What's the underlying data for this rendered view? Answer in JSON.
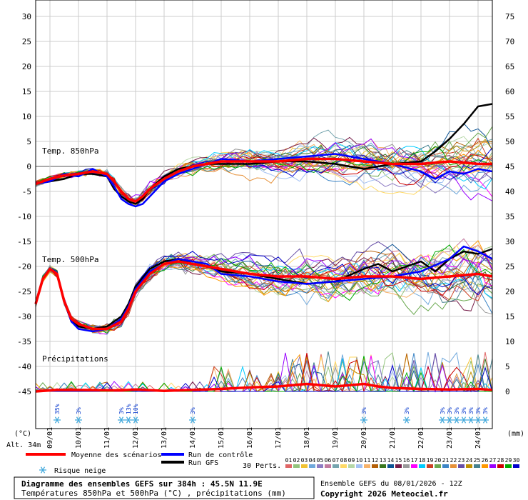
{
  "chart_data": {
    "type": "line",
    "title": "Diagramme des ensembles GEFS sur 384h : 45.5N 11.9E",
    "subtitle": "Températures 850hPa et 500hPa (°C) , précipitations (mm)",
    "run_info": "Ensemble GEFS du 08/01/2026 - 12Z",
    "copyright": "Copyright 2026 Meteociel.fr",
    "altitude": "Alt. 34m",
    "left_unit": "(°C)",
    "right_unit": "(mm)",
    "y_left": {
      "ticks": [
        30,
        25,
        20,
        15,
        10,
        5,
        0,
        -5,
        -10,
        -15,
        -20,
        -25,
        -30,
        -35,
        -40,
        -45
      ],
      "range": [
        -45,
        30
      ]
    },
    "y_right": {
      "ticks": [
        75,
        70,
        65,
        60,
        55,
        50,
        45,
        40,
        35,
        30,
        25,
        20,
        15,
        10,
        5,
        0
      ]
    },
    "x_axis": {
      "start_day": 8.5,
      "end_day": 24.5,
      "labels": [
        "09/01",
        "10/01",
        "11/01",
        "12/01",
        "13/01",
        "14/01",
        "15/01",
        "16/01",
        "17/01",
        "18/01",
        "19/01",
        "20/01",
        "21/01",
        "22/01",
        "23/01",
        "24/01"
      ]
    },
    "panel_labels": {
      "t850": "Temp. 850hPa",
      "t500": "Temp. 500hPa",
      "precip": "Précipitations"
    },
    "legend": {
      "mean": "Moyenne des scénarios",
      "control": "Run de contrôle",
      "gfs": "Run GFS",
      "snow": "Risque neige",
      "perts_label": "30 Perts.",
      "perts": [
        "01",
        "02",
        "03",
        "04",
        "05",
        "06",
        "07",
        "08",
        "09",
        "10",
        "11",
        "12",
        "13",
        "14",
        "15",
        "16",
        "17",
        "18",
        "19",
        "20",
        "21",
        "22",
        "23",
        "24",
        "25",
        "26",
        "27",
        "28",
        "29",
        "30"
      ],
      "pert_colors": [
        "#e06666",
        "#93c47d",
        "#f1c232",
        "#6fa8dc",
        "#8e7cc3",
        "#c27ba0",
        "#76a5af",
        "#ffd966",
        "#b6d7a8",
        "#a4c2f4",
        "#f6b26b",
        "#b45f06",
        "#38761d",
        "#0b5394",
        "#741b47",
        "#999999",
        "#ff00ff",
        "#00ccff",
        "#cc4125",
        "#6aa84f",
        "#3d85c6",
        "#e69138",
        "#674ea7",
        "#bf9000",
        "#45818e",
        "#ff9900",
        "#9900ff",
        "#cc0000",
        "#00aa00",
        "#0000cc"
      ]
    },
    "snow_risk": [
      {
        "day": 9.25,
        "pct": "35%"
      },
      {
        "day": 10.0,
        "pct": "3%"
      },
      {
        "day": 11.5,
        "pct": "3%"
      },
      {
        "day": 11.75,
        "pct": "13%"
      },
      {
        "day": 12.0,
        "pct": "10%"
      },
      {
        "day": 14.0,
        "pct": "3%"
      },
      {
        "day": 20.0,
        "pct": "3%"
      },
      {
        "day": 21.5,
        "pct": "3%"
      },
      {
        "day": 22.75,
        "pct": "3%"
      },
      {
        "day": 23.0,
        "pct": "3%"
      },
      {
        "day": 23.25,
        "pct": "3%"
      },
      {
        "day": 23.5,
        "pct": "3%"
      },
      {
        "day": 23.75,
        "pct": "3%"
      },
      {
        "day": 24.0,
        "pct": "3%"
      },
      {
        "day": 24.25,
        "pct": "3%"
      }
    ],
    "t850_mean": [
      [
        8.5,
        -3.5
      ],
      [
        9.0,
        -2.5
      ],
      [
        9.5,
        -1.8
      ],
      [
        10.0,
        -1.5
      ],
      [
        10.5,
        -1.0
      ],
      [
        11.0,
        -1.5
      ],
      [
        11.25,
        -3.0
      ],
      [
        11.5,
        -5.0
      ],
      [
        11.75,
        -6.5
      ],
      [
        12.0,
        -7.0
      ],
      [
        12.25,
        -6.0
      ],
      [
        12.5,
        -4.5
      ],
      [
        13.0,
        -2.5
      ],
      [
        13.5,
        -1.0
      ],
      [
        14.0,
        0.0
      ],
      [
        14.5,
        0.5
      ],
      [
        15.0,
        1.0
      ],
      [
        16.0,
        1.0
      ],
      [
        17.0,
        1.0
      ],
      [
        18.0,
        1.5
      ],
      [
        19.0,
        1.5
      ],
      [
        20.0,
        1.0
      ],
      [
        21.0,
        0.5
      ],
      [
        22.0,
        0.5
      ],
      [
        23.0,
        1.0
      ],
      [
        24.0,
        0.5
      ],
      [
        24.5,
        0.5
      ]
    ],
    "t850_control": [
      [
        8.5,
        -3.5
      ],
      [
        9.0,
        -3.0
      ],
      [
        9.5,
        -1.5
      ],
      [
        10.0,
        -2.0
      ],
      [
        10.5,
        -0.5
      ],
      [
        11.0,
        -2.0
      ],
      [
        11.25,
        -4.0
      ],
      [
        11.5,
        -6.5
      ],
      [
        11.75,
        -7.5
      ],
      [
        12.0,
        -8.0
      ],
      [
        12.25,
        -7.5
      ],
      [
        12.5,
        -6.0
      ],
      [
        13.0,
        -3.0
      ],
      [
        13.5,
        -1.5
      ],
      [
        14.0,
        -0.5
      ],
      [
        14.5,
        0.5
      ],
      [
        15.0,
        1.5
      ],
      [
        16.0,
        1.0
      ],
      [
        17.0,
        1.5
      ],
      [
        18.0,
        2.0
      ],
      [
        19.0,
        2.5
      ],
      [
        20.0,
        1.5
      ],
      [
        21.0,
        0.5
      ],
      [
        22.0,
        -1.0
      ],
      [
        22.5,
        -2.5
      ],
      [
        23.0,
        -1.0
      ],
      [
        23.5,
        -1.5
      ],
      [
        24.0,
        -0.5
      ],
      [
        24.5,
        -1.0
      ]
    ],
    "t850_gfs": [
      [
        8.5,
        -3.5
      ],
      [
        9.0,
        -3.0
      ],
      [
        9.5,
        -2.5
      ],
      [
        10.0,
        -1.5
      ],
      [
        10.5,
        -1.5
      ],
      [
        11.0,
        -2.0
      ],
      [
        11.25,
        -4.5
      ],
      [
        11.5,
        -6.0
      ],
      [
        11.75,
        -7.0
      ],
      [
        12.0,
        -7.5
      ],
      [
        12.25,
        -6.5
      ],
      [
        12.5,
        -4.5
      ],
      [
        13.0,
        -2.0
      ],
      [
        13.5,
        -0.5
      ],
      [
        14.0,
        0.0
      ],
      [
        14.5,
        0.5
      ],
      [
        15.0,
        0.5
      ],
      [
        16.0,
        0.5
      ],
      [
        17.0,
        1.0
      ],
      [
        18.0,
        1.0
      ],
      [
        19.0,
        0.5
      ],
      [
        20.0,
        -0.5
      ],
      [
        21.0,
        0.5
      ],
      [
        22.0,
        1.0
      ],
      [
        22.5,
        3.0
      ],
      [
        23.0,
        5.5
      ],
      [
        23.5,
        8.5
      ],
      [
        24.0,
        12.0
      ],
      [
        24.5,
        12.5
      ]
    ],
    "t500_mean": [
      [
        8.5,
        -27.5
      ],
      [
        8.75,
        -22.5
      ],
      [
        9.0,
        -20.5
      ],
      [
        9.25,
        -21.5
      ],
      [
        9.5,
        -27.0
      ],
      [
        9.75,
        -30.5
      ],
      [
        10.0,
        -31.5
      ],
      [
        10.5,
        -32.5
      ],
      [
        11.0,
        -32.5
      ],
      [
        11.5,
        -31.0
      ],
      [
        11.75,
        -28.5
      ],
      [
        12.0,
        -25.0
      ],
      [
        12.5,
        -21.5
      ],
      [
        13.0,
        -19.5
      ],
      [
        13.5,
        -19.0
      ],
      [
        14.0,
        -19.5
      ],
      [
        14.5,
        -20.0
      ],
      [
        15.0,
        -20.5
      ],
      [
        16.0,
        -21.5
      ],
      [
        17.0,
        -22.0
      ],
      [
        18.0,
        -22.0
      ],
      [
        19.0,
        -22.5
      ],
      [
        20.0,
        -22.0
      ],
      [
        21.0,
        -22.0
      ],
      [
        22.0,
        -22.5
      ],
      [
        23.0,
        -22.0
      ],
      [
        24.0,
        -21.5
      ],
      [
        24.5,
        -22.0
      ]
    ],
    "t500_control": [
      [
        8.5,
        -27.5
      ],
      [
        8.75,
        -22.5
      ],
      [
        9.0,
        -20.5
      ],
      [
        9.25,
        -21.5
      ],
      [
        9.5,
        -27.0
      ],
      [
        9.75,
        -31.0
      ],
      [
        10.0,
        -32.5
      ],
      [
        10.5,
        -33.0
      ],
      [
        11.0,
        -32.5
      ],
      [
        11.5,
        -30.5
      ],
      [
        11.75,
        -28.0
      ],
      [
        12.0,
        -24.5
      ],
      [
        12.5,
        -21.0
      ],
      [
        13.0,
        -19.5
      ],
      [
        13.5,
        -18.5
      ],
      [
        14.0,
        -19.0
      ],
      [
        14.5,
        -19.5
      ],
      [
        15.0,
        -21.5
      ],
      [
        16.0,
        -22.0
      ],
      [
        17.0,
        -23.0
      ],
      [
        18.0,
        -23.5
      ],
      [
        19.0,
        -23.0
      ],
      [
        20.0,
        -22.5
      ],
      [
        21.0,
        -22.0
      ],
      [
        22.0,
        -21.0
      ],
      [
        23.0,
        -18.5
      ],
      [
        23.5,
        -16.0
      ],
      [
        24.0,
        -17.0
      ],
      [
        24.5,
        -18.5
      ]
    ],
    "t500_gfs": [
      [
        8.5,
        -27.5
      ],
      [
        8.75,
        -22.5
      ],
      [
        9.0,
        -20.5
      ],
      [
        9.25,
        -21.5
      ],
      [
        9.5,
        -27.0
      ],
      [
        9.75,
        -31.0
      ],
      [
        10.0,
        -32.0
      ],
      [
        10.5,
        -32.5
      ],
      [
        11.0,
        -32.0
      ],
      [
        11.5,
        -30.0
      ],
      [
        11.75,
        -27.5
      ],
      [
        12.0,
        -24.0
      ],
      [
        12.5,
        -20.5
      ],
      [
        13.0,
        -19.0
      ],
      [
        13.5,
        -18.5
      ],
      [
        14.0,
        -19.5
      ],
      [
        14.5,
        -20.0
      ],
      [
        15.0,
        -21.0
      ],
      [
        16.0,
        -21.5
      ],
      [
        17.0,
        -22.5
      ],
      [
        18.0,
        -23.5
      ],
      [
        19.0,
        -23.0
      ],
      [
        20.0,
        -20.5
      ],
      [
        20.5,
        -19.5
      ],
      [
        21.0,
        -21.0
      ],
      [
        22.0,
        -19.0
      ],
      [
        22.5,
        -21.0
      ],
      [
        23.0,
        -18.5
      ],
      [
        23.5,
        -17.0
      ],
      [
        24.0,
        -17.5
      ],
      [
        24.5,
        -16.5
      ]
    ],
    "precip_mean": [
      [
        8.5,
        0.0
      ],
      [
        9.25,
        0.3
      ],
      [
        10.0,
        0.3
      ],
      [
        11.5,
        0.2
      ],
      [
        12.0,
        0.4
      ],
      [
        13.0,
        0.1
      ],
      [
        14.0,
        0.3
      ],
      [
        15.0,
        0.5
      ],
      [
        16.0,
        0.8
      ],
      [
        17.0,
        1.0
      ],
      [
        18.0,
        1.5
      ],
      [
        19.0,
        1.0
      ],
      [
        20.0,
        1.5
      ],
      [
        20.5,
        1.0
      ],
      [
        21.0,
        0.7
      ],
      [
        22.0,
        0.5
      ],
      [
        23.0,
        0.4
      ],
      [
        24.0,
        0.5
      ],
      [
        24.5,
        0.3
      ]
    ]
  }
}
